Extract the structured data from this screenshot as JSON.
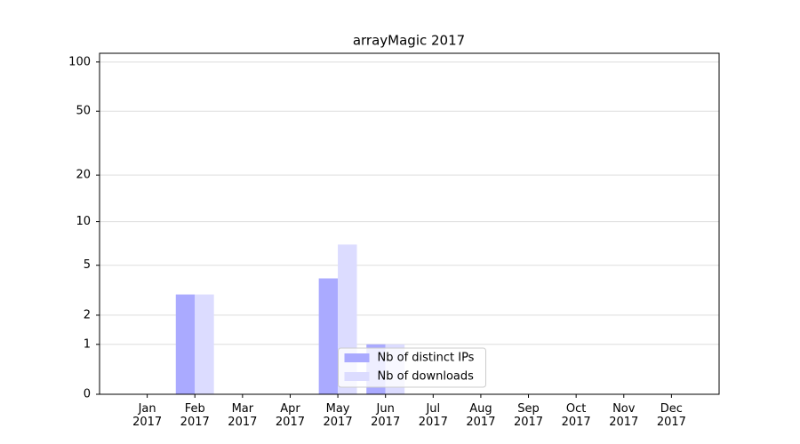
{
  "chart_data": {
    "type": "bar",
    "title": "arrayMagic 2017",
    "categories": [
      "Jan 2017",
      "Feb 2017",
      "Mar 2017",
      "Apr 2017",
      "May 2017",
      "Jun 2017",
      "Jul 2017",
      "Aug 2017",
      "Sep 2017",
      "Oct 2017",
      "Nov 2017",
      "Dec 2017"
    ],
    "series": [
      {
        "name": "Nb of distinct IPs",
        "color": "#aaaaff",
        "values": [
          0,
          3,
          0,
          0,
          4,
          1,
          0,
          0,
          0,
          0,
          0,
          0
        ]
      },
      {
        "name": "Nb of downloads",
        "color": "#dcdcff",
        "values": [
          0,
          3,
          0,
          0,
          7,
          1,
          0,
          0,
          0,
          0,
          0,
          0
        ]
      }
    ],
    "yscale": "log1p",
    "ylim": [
      0,
      113
    ],
    "yticks": [
      0,
      1,
      2,
      5,
      10,
      20,
      50,
      100
    ],
    "grid": true,
    "legend": "lower center"
  }
}
